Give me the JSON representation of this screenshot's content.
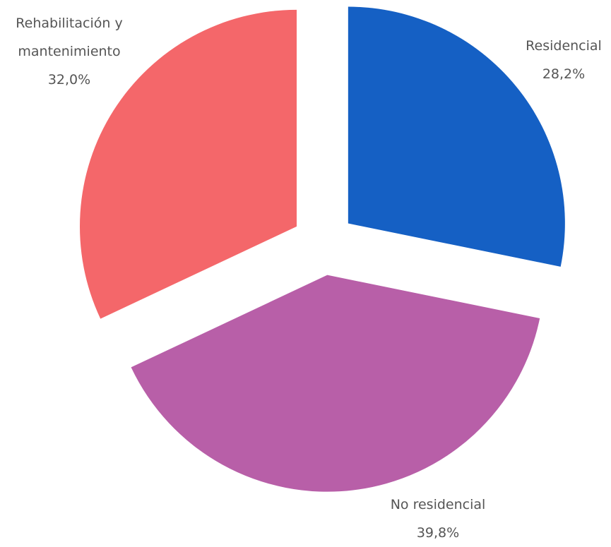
{
  "chart_data": {
    "type": "pie",
    "categories": [
      "Residencial",
      "No residencial",
      "Rehabilitación y mantenimiento"
    ],
    "values": [
      28.2,
      39.8,
      32.0
    ],
    "value_labels": [
      "28,2%",
      "39,8%",
      "32,0%"
    ],
    "colors": [
      "#1560c4",
      "#b85fa8",
      "#f4676a"
    ]
  }
}
